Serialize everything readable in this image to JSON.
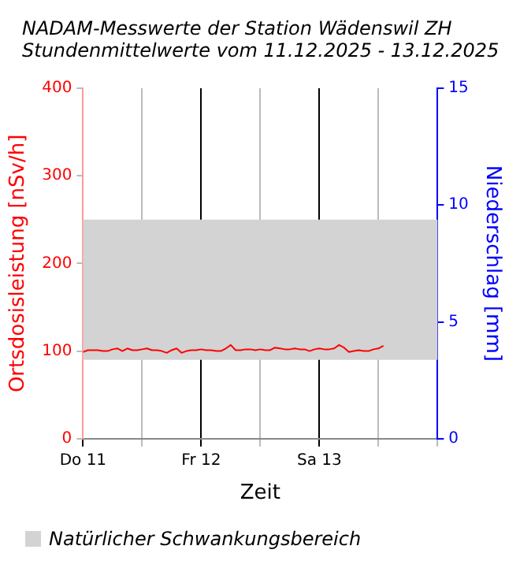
{
  "chart_data": {
    "type": "line",
    "title": "NADAM-Messwerte der Station Wädenswil ZH",
    "subtitle": "Stundenmittelwerte vom 11.12.2025 - 13.12.2025",
    "xlabel": "Zeit",
    "ylabel": "Ortsdosisleistung [nSv/h]",
    "y2label": "Niederschlag [mm]",
    "x": [
      "2025-12-11T00:00",
      "2025-12-11T01:00",
      "2025-12-11T02:00",
      "2025-12-11T03:00",
      "2025-12-11T04:00",
      "2025-12-11T05:00",
      "2025-12-11T06:00",
      "2025-12-11T07:00",
      "2025-12-11T08:00",
      "2025-12-11T09:00",
      "2025-12-11T10:00",
      "2025-12-11T11:00",
      "2025-12-11T12:00",
      "2025-12-11T13:00",
      "2025-12-11T14:00",
      "2025-12-11T15:00",
      "2025-12-11T16:00",
      "2025-12-11T17:00",
      "2025-12-11T18:00",
      "2025-12-11T19:00",
      "2025-12-11T20:00",
      "2025-12-11T21:00",
      "2025-12-11T22:00",
      "2025-12-11T23:00",
      "2025-12-12T00:00",
      "2025-12-12T01:00",
      "2025-12-12T02:00",
      "2025-12-12T03:00",
      "2025-12-12T04:00",
      "2025-12-12T05:00",
      "2025-12-12T06:00",
      "2025-12-12T07:00",
      "2025-12-12T08:00",
      "2025-12-12T09:00",
      "2025-12-12T10:00",
      "2025-12-12T11:00",
      "2025-12-12T12:00",
      "2025-12-12T13:00",
      "2025-12-12T14:00",
      "2025-12-12T15:00",
      "2025-12-12T16:00",
      "2025-12-12T17:00",
      "2025-12-12T18:00",
      "2025-12-12T19:00",
      "2025-12-12T20:00",
      "2025-12-12T21:00",
      "2025-12-12T22:00",
      "2025-12-12T23:00",
      "2025-12-13T00:00",
      "2025-12-13T01:00",
      "2025-12-13T02:00",
      "2025-12-13T03:00",
      "2025-12-13T04:00",
      "2025-12-13T05:00",
      "2025-12-13T06:00",
      "2025-12-13T07:00",
      "2025-12-13T08:00",
      "2025-12-13T09:00",
      "2025-12-13T10:00",
      "2025-12-13T11:00",
      "2025-12-13T12:00",
      "2025-12-13T13:00"
    ],
    "series": [
      {
        "color": "#ff0000",
        "values": [
          99,
          101,
          101,
          101,
          100,
          100,
          102,
          103,
          100,
          103,
          101,
          101,
          102,
          103,
          101,
          101,
          100,
          98,
          101,
          103,
          98,
          100,
          101,
          101,
          102,
          101,
          101,
          100,
          100,
          103,
          107,
          101,
          101,
          102,
          102,
          101,
          102,
          101,
          101,
          104,
          103,
          102,
          102,
          103,
          102,
          102,
          100,
          102,
          103,
          102,
          102,
          103,
          107,
          104,
          99,
          100,
          101,
          100,
          100,
          102,
          103,
          106
        ]
      }
    ],
    "xlim": [
      "2025-12-11T00:00",
      "2025-12-14T00:00"
    ],
    "xticks": [
      {
        "value": "2025-12-11T00:00",
        "label": "Do 11"
      },
      {
        "value": "2025-12-11T12:00",
        "label": null
      },
      {
        "value": "2025-12-12T00:00",
        "label": "Fr 12"
      },
      {
        "value": "2025-12-12T12:00",
        "label": null
      },
      {
        "value": "2025-12-13T00:00",
        "label": "Sa 13"
      },
      {
        "value": "2025-12-13T12:00",
        "label": null
      },
      {
        "value": "2025-12-14T00:00",
        "label": null
      }
    ],
    "ylim": [
      0,
      400
    ],
    "yticks": [
      0,
      100,
      200,
      300,
      400
    ],
    "y2lim": [
      0,
      15
    ],
    "y2ticks": [
      0,
      5,
      10,
      15
    ],
    "bands": [
      {
        "axis": "y",
        "from": 90,
        "to": 250,
        "label": "Natürlicher Schwankungsbereich",
        "color": "#d3d3d3"
      }
    ],
    "grid": "x",
    "legend": "bottom left",
    "marker": "none",
    "line_style": "solid"
  }
}
